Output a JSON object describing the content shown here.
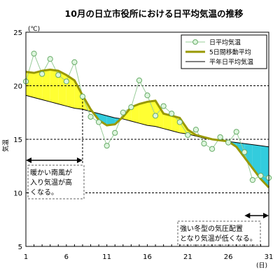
{
  "chart_data": {
    "type": "line",
    "title": "10月の日立市役所における日平均気温の推移",
    "y_unit": "(℃)",
    "ylabel": "気温",
    "x_unit": "(日)",
    "ylim": [
      5,
      25
    ],
    "xlim": [
      1,
      31
    ],
    "y_ticks": [
      5,
      10,
      15,
      20,
      25
    ],
    "x_ticks": [
      1,
      6,
      11,
      16,
      21,
      26,
      31
    ],
    "gridlines_y": [
      10,
      15,
      20
    ],
    "x": [
      1,
      2,
      3,
      4,
      5,
      6,
      7,
      8,
      9,
      10,
      11,
      12,
      13,
      14,
      15,
      16,
      17,
      18,
      19,
      20,
      21,
      22,
      23,
      24,
      25,
      26,
      27,
      28,
      29,
      30,
      31
    ],
    "series": [
      {
        "name": "日平均気温",
        "color": "#99cc99",
        "values": [
          20.4,
          23.0,
          21.1,
          22.5,
          21.0,
          20.4,
          22.2,
          19.0,
          17.1,
          16.6,
          14.4,
          15.6,
          17.5,
          18.0,
          20.5,
          19.1,
          17.2,
          18.1,
          17.4,
          16.6,
          15.4,
          15.9,
          14.6,
          14.1,
          15.2,
          14.7,
          15.7,
          13.8,
          11.2,
          11.6,
          11.4
        ]
      },
      {
        "name": "5日間移動平均",
        "color": "#999900",
        "values": [
          21.3,
          21.2,
          21.4,
          21.5,
          21.4,
          21.0,
          20.5,
          19.1,
          17.8,
          16.8,
          16.3,
          16.4,
          17.1,
          18.0,
          18.3,
          18.5,
          18.6,
          17.4,
          17.2,
          17.0,
          15.9,
          15.4,
          15.2,
          15.0,
          14.9,
          14.8,
          14.3,
          13.3,
          12.3,
          11.3,
          10.5
        ]
      },
      {
        "name": "平年日平均気温",
        "color": "#000000",
        "values": [
          19.1,
          18.9,
          18.7,
          18.5,
          18.3,
          18.1,
          17.9,
          17.8,
          17.6,
          17.4,
          17.2,
          17.0,
          16.9,
          16.7,
          16.5,
          16.3,
          16.2,
          16.0,
          15.8,
          15.6,
          15.5,
          15.3,
          15.1,
          15.0,
          14.9,
          14.8,
          14.7,
          14.6,
          14.5,
          14.4,
          14.3
        ]
      }
    ],
    "fill_above_color": "#ffff33",
    "fill_below_color": "#33ccdd",
    "legend_position": "top-right",
    "annotations": [
      {
        "lines": [
          "暖かい南風が",
          "入り気温が高",
          "くなる。"
        ],
        "from_day": 1,
        "to_day": 8
      },
      {
        "lines": [
          "強い冬型の気圧配置",
          "となり気温が低くなる。"
        ],
        "from_day": 28,
        "to_day": 31
      }
    ]
  }
}
